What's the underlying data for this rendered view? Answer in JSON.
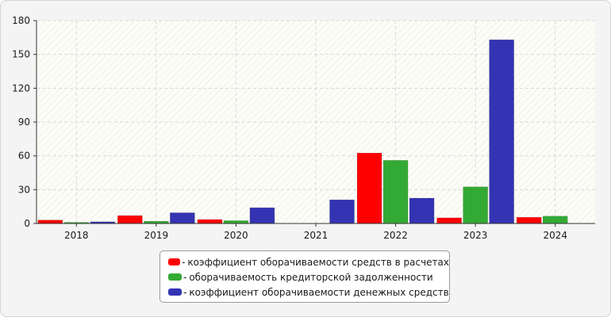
{
  "chart_data": {
    "type": "bar",
    "categories": [
      "2018",
      "2019",
      "2020",
      "2021",
      "2022",
      "2023",
      "2024"
    ],
    "ylim": [
      0,
      180
    ],
    "yticks": [
      0,
      30,
      60,
      90,
      120,
      150,
      180
    ],
    "grid": true,
    "legend_position": "bottom",
    "series": [
      {
        "name": "коэффициент оборачиваемости средств в расчетах",
        "color": "#ff0000",
        "values": [
          3,
          7,
          3.5,
          0,
          62.5,
          5,
          5.5
        ]
      },
      {
        "name": "оборачиваемость кредиторской задолженности",
        "color": "#33aa33",
        "values": [
          1,
          2,
          2.5,
          0,
          56,
          32.5,
          6.5
        ]
      },
      {
        "name": "коэффициент оборачиваемости денежных средств",
        "color": "#3333b3",
        "values": [
          1.5,
          9.5,
          14,
          21,
          22.5,
          163,
          0
        ]
      }
    ]
  }
}
